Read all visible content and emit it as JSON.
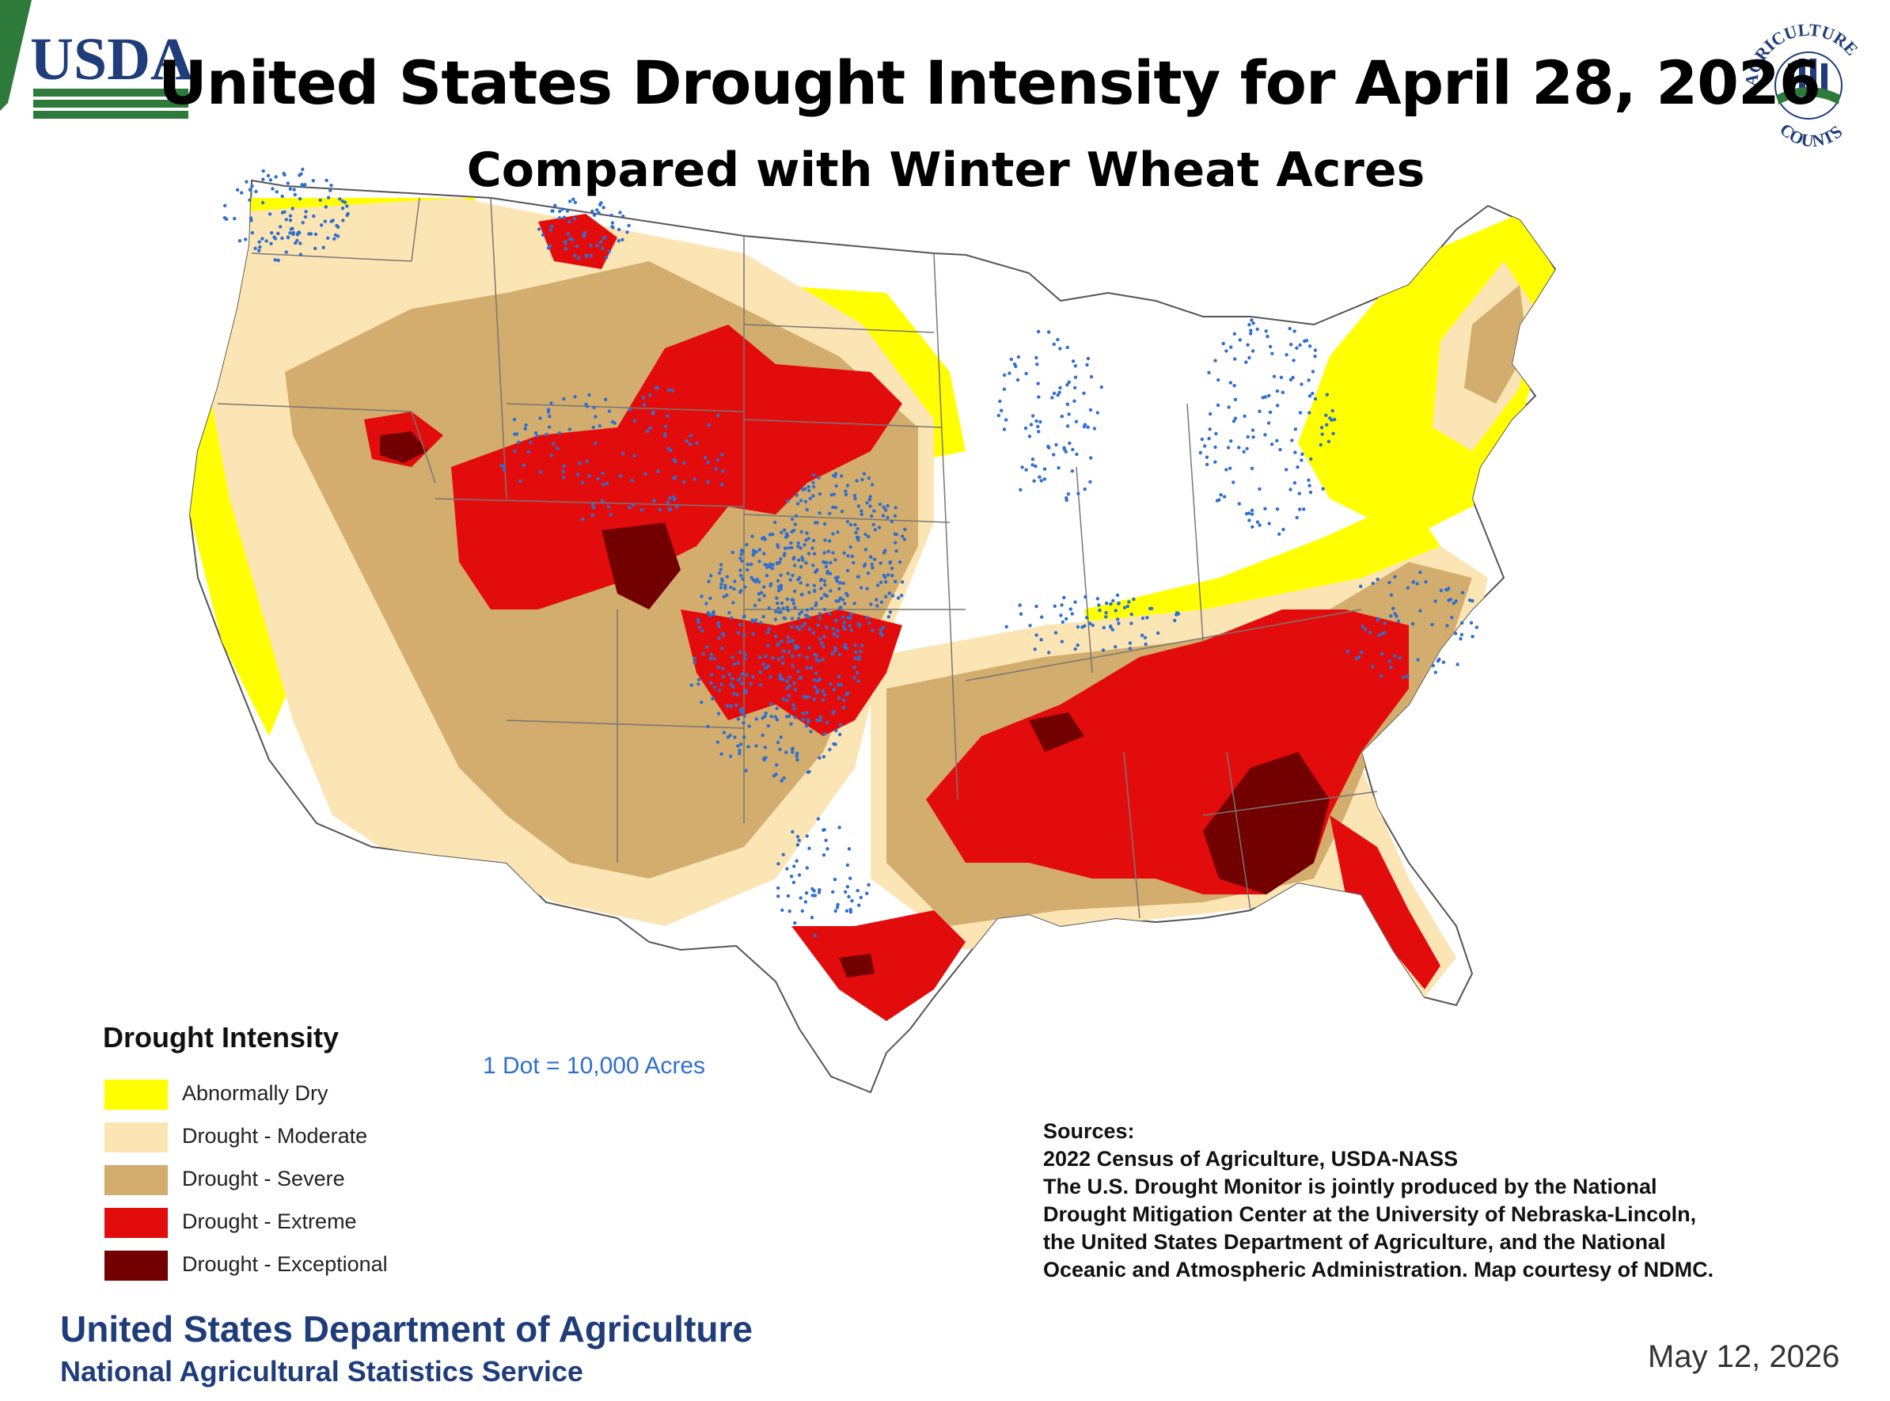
{
  "header": {
    "title": "United States Drought Intensity for April 28, 2026",
    "subtitle": "Compared with Winter Wheat Acres",
    "usda_logo_text": "USDA",
    "ag_counts_logo_text": [
      "AGRICULTURE",
      "COUNTS"
    ]
  },
  "colors": {
    "abnormally_dry": "#ffff00",
    "moderate": "#fce5b4",
    "severe": "#d2ad6e",
    "extreme": "#e30c0c",
    "exceptional": "#730000",
    "dots": "#2f6fd0",
    "state_lines": "#777777",
    "usda_blue": "#1f3d7a",
    "usda_green": "#2d7a3a"
  },
  "legend": {
    "title": "Drought Intensity",
    "items": [
      {
        "label": "Abnormally Dry",
        "color": "#ffff00"
      },
      {
        "label": "Drought - Moderate",
        "color": "#fce5b4"
      },
      {
        "label": "Drought - Severe",
        "color": "#d2ad6e"
      },
      {
        "label": "Drought - Extreme",
        "color": "#e30c0c"
      },
      {
        "label": "Drought - Exceptional",
        "color": "#730000"
      }
    ]
  },
  "dot_note": "1 Dot = 10,000 Acres",
  "sources": [
    "Sources:",
    "2022 Census of Agriculture, USDA-NASS",
    "The U.S. Drought Monitor is jointly produced by the National",
    "Drought Mitigation Center at the University of Nebraska-Lincoln,",
    "the United States Department of Agriculture, and the National",
    "Oceanic and Atmospheric Administration. Map courtesy of NDMC."
  ],
  "footer": {
    "agency": "United States Department of Agriculture",
    "service": "National Agricultural Statistics Service",
    "date": "May 12, 2026"
  }
}
